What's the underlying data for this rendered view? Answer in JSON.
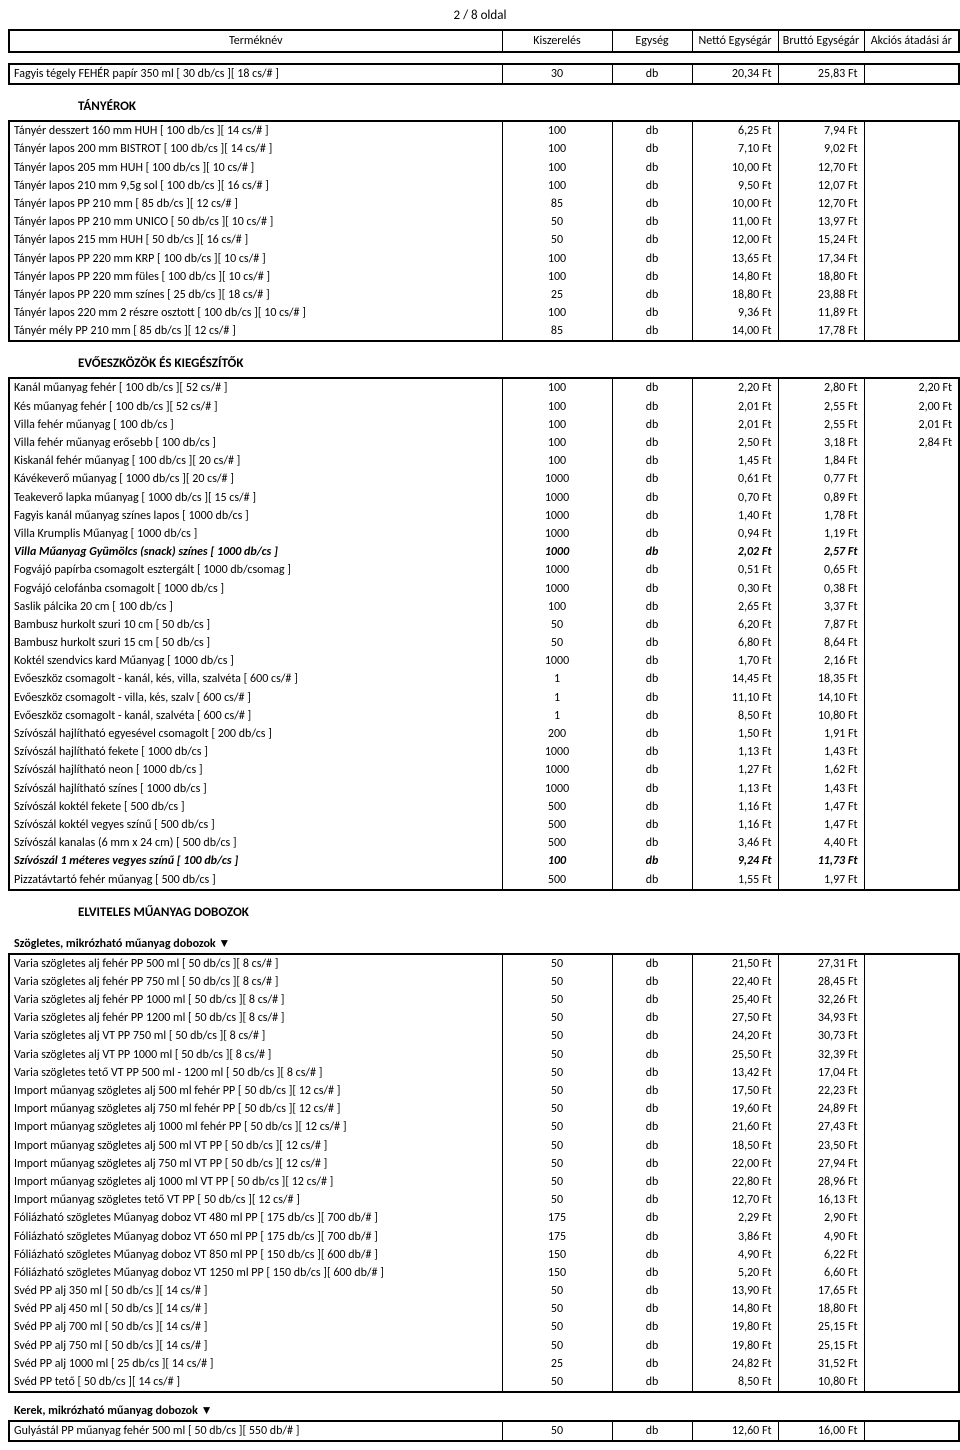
{
  "page_number": "2 / 8 oldal",
  "header": {
    "name": "Terméknév",
    "pack": "Kiszerelés",
    "unit": "Egység",
    "net": "Nettó Egységár",
    "gross": "Bruttó Egységár",
    "sale": "Akciós átadási ár"
  },
  "top_rows": [
    {
      "n": "Fagyis tégely FEHÉR papír 350 ml [ 30 db/cs ][ 18 cs/# ]",
      "p": "30",
      "u": "db",
      "net": "20,34 Ft",
      "gr": "25,83 Ft",
      "s": ""
    }
  ],
  "sections": [
    {
      "title": "TÁNYÉROK",
      "subtitle": "",
      "rows": [
        {
          "n": "Tányér desszert 160 mm HUH [ 100 db/cs ][ 14 cs/# ]",
          "p": "100",
          "u": "db",
          "net": "6,25 Ft",
          "gr": "7,94 Ft",
          "s": ""
        },
        {
          "n": "Tányér lapos 200 mm BISTROT [ 100 db/cs ][ 14 cs/# ]",
          "p": "100",
          "u": "db",
          "net": "7,10 Ft",
          "gr": "9,02 Ft",
          "s": ""
        },
        {
          "n": "Tányér lapos 205 mm HUH [ 100 db/cs ][ 10 cs/# ]",
          "p": "100",
          "u": "db",
          "net": "10,00 Ft",
          "gr": "12,70 Ft",
          "s": ""
        },
        {
          "n": "Tányér lapos 210 mm 9,5g sol [ 100 db/cs ][ 16 cs/# ]",
          "p": "100",
          "u": "db",
          "net": "9,50 Ft",
          "gr": "12,07 Ft",
          "s": ""
        },
        {
          "n": "Tányér lapos PP 210 mm [ 85 db/cs ][ 12 cs/# ]",
          "p": "85",
          "u": "db",
          "net": "10,00 Ft",
          "gr": "12,70 Ft",
          "s": ""
        },
        {
          "n": "Tányér lapos PP 210 mm UNICO [ 50 db/cs ][ 10 cs/# ]",
          "p": "50",
          "u": "db",
          "net": "11,00 Ft",
          "gr": "13,97 Ft",
          "s": ""
        },
        {
          "n": "Tányér lapos 215 mm HUH [ 50 db/cs ][ 16 cs/# ]",
          "p": "50",
          "u": "db",
          "net": "12,00 Ft",
          "gr": "15,24 Ft",
          "s": ""
        },
        {
          "n": "Tányér lapos PP 220 mm KRP [ 100 db/cs ][ 10 cs/# ]",
          "p": "100",
          "u": "db",
          "net": "13,65 Ft",
          "gr": "17,34 Ft",
          "s": ""
        },
        {
          "n": "Tányér lapos PP 220 mm füles [ 100 db/cs ][ 10 cs/# ]",
          "p": "100",
          "u": "db",
          "net": "14,80 Ft",
          "gr": "18,80 Ft",
          "s": ""
        },
        {
          "n": "Tányér lapos PP 220 mm színes [ 25 db/cs ][ 18 cs/# ]",
          "p": "25",
          "u": "db",
          "net": "18,80 Ft",
          "gr": "23,88 Ft",
          "s": ""
        },
        {
          "n": "Tányér lapos 220 mm 2 részre osztott [ 100 db/cs ][ 10 cs/# ]",
          "p": "100",
          "u": "db",
          "net": "9,36 Ft",
          "gr": "11,89 Ft",
          "s": ""
        },
        {
          "n": "Tányér mély PP 210 mm [ 85 db/cs ][ 12 cs/# ]",
          "p": "85",
          "u": "db",
          "net": "14,00 Ft",
          "gr": "17,78 Ft",
          "s": ""
        }
      ]
    },
    {
      "title": "EVŐESZKÖZÖK ÉS KIEGÉSZÍTŐK",
      "subtitle": "",
      "rows": [
        {
          "n": "Kanál műanyag fehér [ 100 db/cs ][ 52 cs/# ]",
          "p": "100",
          "u": "db",
          "net": "2,20 Ft",
          "gr": "2,80 Ft",
          "s": "2,20 Ft"
        },
        {
          "n": "Kés műanyag fehér [ 100 db/cs ][ 52 cs/# ]",
          "p": "100",
          "u": "db",
          "net": "2,01 Ft",
          "gr": "2,55 Ft",
          "s": "2,00 Ft"
        },
        {
          "n": "Villa fehér műanyag [ 100 db/cs ]",
          "p": "100",
          "u": "db",
          "net": "2,01 Ft",
          "gr": "2,55 Ft",
          "s": "2,01 Ft"
        },
        {
          "n": "Villa fehér műanyag erősebb [ 100 db/cs ]",
          "p": "100",
          "u": "db",
          "net": "2,50 Ft",
          "gr": "3,18 Ft",
          "s": "2,84 Ft"
        },
        {
          "n": "Kiskanál fehér műanyag [ 100 db/cs ][ 20 cs/# ]",
          "p": "100",
          "u": "db",
          "net": "1,45 Ft",
          "gr": "1,84 Ft",
          "s": ""
        },
        {
          "n": "Kávékeverő műanyag [ 1000 db/cs ][ 20 cs/# ]",
          "p": "1000",
          "u": "db",
          "net": "0,61 Ft",
          "gr": "0,77 Ft",
          "s": ""
        },
        {
          "n": "Teakeverő lapka műanyag [ 1000 db/cs ][ 15 cs/# ]",
          "p": "1000",
          "u": "db",
          "net": "0,70 Ft",
          "gr": "0,89 Ft",
          "s": ""
        },
        {
          "n": "Fagyis kanál műanyag színes lapos [ 1000 db/cs ]",
          "p": "1000",
          "u": "db",
          "net": "1,40 Ft",
          "gr": "1,78 Ft",
          "s": ""
        },
        {
          "n": "Villa Krumplis Műanyag [ 1000 db/cs ]",
          "p": "1000",
          "u": "db",
          "net": "0,94 Ft",
          "gr": "1,19 Ft",
          "s": ""
        },
        {
          "n": "Villa Műanyag Gyümölcs (snack) színes [ 1000 db/cs ]",
          "p": "1000",
          "u": "db",
          "net": "2,02 Ft",
          "gr": "2,57 Ft",
          "s": "",
          "bold": true
        },
        {
          "n": "Fogvájó papírba csomagolt esztergált [ 1000 db/csomag ]",
          "p": "1000",
          "u": "db",
          "net": "0,51 Ft",
          "gr": "0,65 Ft",
          "s": ""
        },
        {
          "n": "Fogvájó celofánba csomagolt [ 1000 db/cs ]",
          "p": "1000",
          "u": "db",
          "net": "0,30 Ft",
          "gr": "0,38 Ft",
          "s": ""
        },
        {
          "n": "Saslik pálcika 20 cm [ 100 db/cs ]",
          "p": "100",
          "u": "db",
          "net": "2,65 Ft",
          "gr": "3,37 Ft",
          "s": ""
        },
        {
          "n": "Bambusz hurkolt szuri 10 cm [ 50 db/cs ]",
          "p": "50",
          "u": "db",
          "net": "6,20 Ft",
          "gr": "7,87 Ft",
          "s": ""
        },
        {
          "n": "Bambusz hurkolt szuri 15 cm [ 50 db/cs ]",
          "p": "50",
          "u": "db",
          "net": "6,80 Ft",
          "gr": "8,64 Ft",
          "s": ""
        },
        {
          "n": "Koktél szendvics kard Műanyag [ 1000 db/cs ]",
          "p": "1000",
          "u": "db",
          "net": "1,70 Ft",
          "gr": "2,16 Ft",
          "s": ""
        },
        {
          "n": "Evőeszköz csomagolt - kanál, kés, villa, szalvéta [ 600 cs/# ]",
          "p": "1",
          "u": "db",
          "net": "14,45 Ft",
          "gr": "18,35 Ft",
          "s": ""
        },
        {
          "n": "Evőeszköz csomagolt - villa, kés, szalv [ 600 cs/# ]",
          "p": "1",
          "u": "db",
          "net": "11,10 Ft",
          "gr": "14,10 Ft",
          "s": ""
        },
        {
          "n": "Evőeszköz csomagolt - kanál, szalvéta [ 600 cs/# ]",
          "p": "1",
          "u": "db",
          "net": "8,50 Ft",
          "gr": "10,80 Ft",
          "s": ""
        },
        {
          "n": "Szívószál hajlítható egyesével csomagolt [ 200 db/cs ]",
          "p": "200",
          "u": "db",
          "net": "1,50 Ft",
          "gr": "1,91 Ft",
          "s": ""
        },
        {
          "n": "Szívószál  hajlítható fekete [ 1000 db/cs ]",
          "p": "1000",
          "u": "db",
          "net": "1,13 Ft",
          "gr": "1,43 Ft",
          "s": ""
        },
        {
          "n": "Szívószál  hajlítható neon [ 1000 db/cs ]",
          "p": "1000",
          "u": "db",
          "net": "1,27 Ft",
          "gr": "1,62 Ft",
          "s": ""
        },
        {
          "n": "Szívószál  hajlítható színes [ 1000 db/cs ]",
          "p": "1000",
          "u": "db",
          "net": "1,13 Ft",
          "gr": "1,43 Ft",
          "s": ""
        },
        {
          "n": "Szívószál  koktél fekete [ 500 db/cs ]",
          "p": "500",
          "u": "db",
          "net": "1,16 Ft",
          "gr": "1,47 Ft",
          "s": ""
        },
        {
          "n": "Szívószál  koktél vegyes színű [ 500 db/cs ]",
          "p": "500",
          "u": "db",
          "net": "1,16 Ft",
          "gr": "1,47 Ft",
          "s": ""
        },
        {
          "n": "Szívószál kanalas (6 mm x 24 cm) [ 500 db/cs ]",
          "p": "500",
          "u": "db",
          "net": "3,46 Ft",
          "gr": "4,40 Ft",
          "s": ""
        },
        {
          "n": "Szívószál 1 méteres vegyes színű [ 100 db/cs ]",
          "p": "100",
          "u": "db",
          "net": "9,24 Ft",
          "gr": "11,73 Ft",
          "s": "",
          "bold": true
        },
        {
          "n": "Pizzatávtartó fehér műanyag [ 500 db/cs ]",
          "p": "500",
          "u": "db",
          "net": "1,55 Ft",
          "gr": "1,97 Ft",
          "s": ""
        }
      ]
    },
    {
      "title": "ELVITELES MŰANYAG DOBOZOK",
      "subtitle": "Szögletes, mikrózható műanyag dobozok ▼",
      "rows": [
        {
          "n": "Varia szögletes alj fehér PP  500 ml [ 50 db/cs ][ 8 cs/# ]",
          "p": "50",
          "u": "db",
          "net": "21,50 Ft",
          "gr": "27,31 Ft",
          "s": ""
        },
        {
          "n": "Varia szögletes alj fehér PP  750 ml [ 50 db/cs ][ 8 cs/# ]",
          "p": "50",
          "u": "db",
          "net": "22,40 Ft",
          "gr": "28,45 Ft",
          "s": ""
        },
        {
          "n": "Varia szögletes alj fehér PP 1000 ml [ 50 db/cs ][ 8 cs/# ]",
          "p": "50",
          "u": "db",
          "net": "25,40 Ft",
          "gr": "32,26 Ft",
          "s": ""
        },
        {
          "n": "Varia szögletes alj fehér PP 1200 ml [ 50 db/cs ][ 8 cs/# ]",
          "p": "50",
          "u": "db",
          "net": "27,50 Ft",
          "gr": "34,93 Ft",
          "s": ""
        },
        {
          "n": "Varia szögletes alj VT PP  750 ml [ 50 db/cs ][ 8 cs/# ]",
          "p": "50",
          "u": "db",
          "net": "24,20 Ft",
          "gr": "30,73 Ft",
          "s": ""
        },
        {
          "n": "Varia szögletes alj VT PP 1000 ml [ 50 db/cs ][ 8 cs/# ]",
          "p": "50",
          "u": "db",
          "net": "25,50 Ft",
          "gr": "32,39 Ft",
          "s": ""
        },
        {
          "n": "Varia szögletes tető VT PP 500 ml - 1200 ml [ 50 db/cs ][ 8 cs/# ]",
          "p": "50",
          "u": "db",
          "net": "13,42 Ft",
          "gr": "17,04 Ft",
          "s": ""
        },
        {
          "n": "Import műanyag szögletes alj   500 ml fehér PP [ 50 db/cs ][ 12 cs/# ]",
          "p": "50",
          "u": "db",
          "net": "17,50 Ft",
          "gr": "22,23 Ft",
          "s": ""
        },
        {
          "n": "Import műanyag szögletes alj   750 ml fehér PP [ 50 db/cs ][ 12 cs/# ]",
          "p": "50",
          "u": "db",
          "net": "19,60 Ft",
          "gr": "24,89 Ft",
          "s": ""
        },
        {
          "n": "Import műanyag szögletes alj 1000 ml fehér PP [ 50 db/cs ][ 12 cs/# ]",
          "p": "50",
          "u": "db",
          "net": "21,60 Ft",
          "gr": "27,43 Ft",
          "s": ""
        },
        {
          "n": "Import műanyag szögletes alj   500 ml VT PP [ 50 db/cs ][ 12 cs/# ]",
          "p": "50",
          "u": "db",
          "net": "18,50 Ft",
          "gr": "23,50 Ft",
          "s": ""
        },
        {
          "n": "Import műanyag szögletes alj   750 ml VT PP [ 50 db/cs ][ 12 cs/# ]",
          "p": "50",
          "u": "db",
          "net": "22,00 Ft",
          "gr": "27,94 Ft",
          "s": ""
        },
        {
          "n": "Import műanyag szögletes alj 1000 ml VT PP [ 50 db/cs ][ 12 cs/# ]",
          "p": "50",
          "u": "db",
          "net": "22,80 Ft",
          "gr": "28,96 Ft",
          "s": ""
        },
        {
          "n": "Import műanyag szögletes tető VT PP [ 50 db/cs ][ 12 cs/# ]",
          "p": "50",
          "u": "db",
          "net": "12,70 Ft",
          "gr": "16,13 Ft",
          "s": ""
        },
        {
          "n": "Fóliázható szögletes Műanyag doboz VT   480 ml PP [ 175 db/cs ][ 700 db/# ]",
          "p": "175",
          "u": "db",
          "net": "2,29 Ft",
          "gr": "2,90 Ft",
          "s": ""
        },
        {
          "n": "Fóliázható szögletes Műanyag doboz VT   650 ml PP [ 175 db/cs ][ 700 db/# ]",
          "p": "175",
          "u": "db",
          "net": "3,86 Ft",
          "gr": "4,90 Ft",
          "s": ""
        },
        {
          "n": "Fóliázható szögletes Műanyag doboz VT   850 ml PP [ 150 db/cs ][ 600 db/# ]",
          "p": "150",
          "u": "db",
          "net": "4,90 Ft",
          "gr": "6,22 Ft",
          "s": ""
        },
        {
          "n": "Fóliázható szögletes Műanyag doboz VT 1250 ml PP [ 150 db/cs ][ 600 db/# ]",
          "p": "150",
          "u": "db",
          "net": "5,20 Ft",
          "gr": "6,60 Ft",
          "s": ""
        },
        {
          "n": "Svéd PP alj  350 ml [ 50 db/cs ][ 14 cs/# ]",
          "p": "50",
          "u": "db",
          "net": "13,90 Ft",
          "gr": "17,65 Ft",
          "s": ""
        },
        {
          "n": "Svéd PP alj  450 ml [ 50 db/cs ][ 14 cs/# ]",
          "p": "50",
          "u": "db",
          "net": "14,80 Ft",
          "gr": "18,80 Ft",
          "s": ""
        },
        {
          "n": "Svéd PP alj  700 ml [ 50 db/cs ][ 14 cs/# ]",
          "p": "50",
          "u": "db",
          "net": "19,80 Ft",
          "gr": "25,15 Ft",
          "s": ""
        },
        {
          "n": "Svéd PP alj  750 ml [ 50 db/cs ][ 14 cs/# ]",
          "p": "50",
          "u": "db",
          "net": "19,80 Ft",
          "gr": "25,15 Ft",
          "s": ""
        },
        {
          "n": "Svéd PP alj 1000 ml [ 25 db/cs ][ 14 cs/# ]",
          "p": "25",
          "u": "db",
          "net": "24,82 Ft",
          "gr": "31,52 Ft",
          "s": ""
        },
        {
          "n": "Svéd PP tető [ 50 db/cs ][ 14 cs/# ]",
          "p": "50",
          "u": "db",
          "net": "8,50 Ft",
          "gr": "10,80 Ft",
          "s": ""
        }
      ],
      "tail_subtitle": "Kerek, mikrózható műanyag dobozok ▼",
      "tail_rows": [
        {
          "n": "Gulyástál PP műanyag fehér 500 ml [ 50 db/cs ][ 550 db/# ]",
          "p": "50",
          "u": "db",
          "net": "12,60 Ft",
          "gr": "16,00 Ft",
          "s": ""
        }
      ]
    }
  ]
}
